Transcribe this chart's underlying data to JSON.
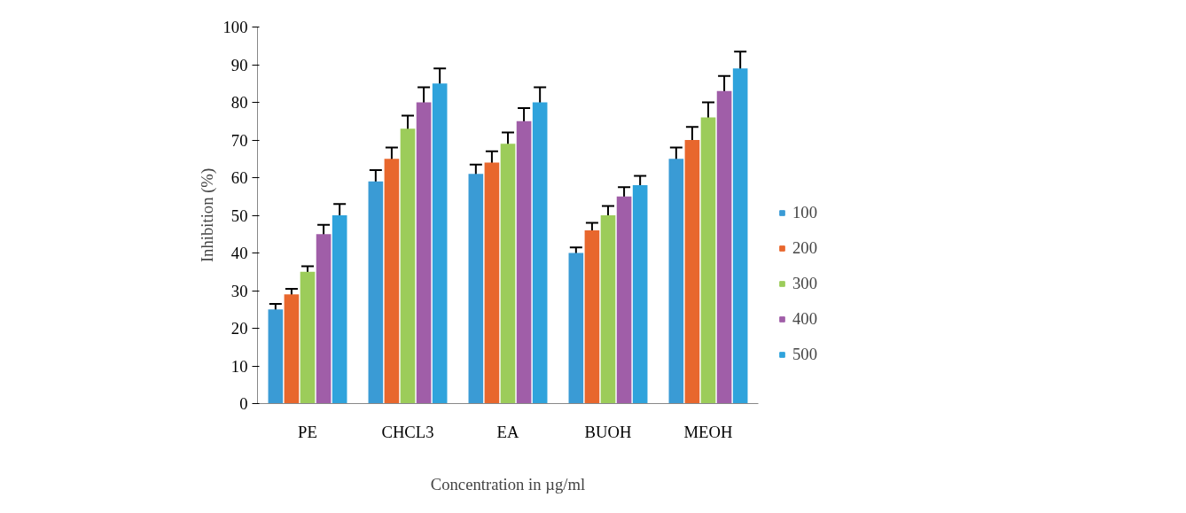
{
  "chart_data": {
    "type": "bar",
    "xlabel": "Concentration in µg/ml",
    "ylabel": "Inhibition (%)",
    "categories": [
      "PE",
      "CHCL3",
      "EA",
      "BUOH",
      "MEOH"
    ],
    "series": [
      {
        "name": "100",
        "color": "#3a9bd5",
        "values": [
          25,
          59,
          61,
          40,
          65
        ],
        "errors": [
          1.5,
          3,
          2.5,
          1.5,
          3
        ]
      },
      {
        "name": "200",
        "color": "#e8672d",
        "values": [
          29,
          65,
          64,
          46,
          70
        ],
        "errors": [
          1.5,
          3,
          3,
          2,
          3.5
        ]
      },
      {
        "name": "300",
        "color": "#9ccc5a",
        "values": [
          35,
          73,
          69,
          50,
          76
        ],
        "errors": [
          1.5,
          3.5,
          3,
          2.5,
          4
        ]
      },
      {
        "name": "400",
        "color": "#a05ea8",
        "values": [
          45,
          80,
          75,
          55,
          83
        ],
        "errors": [
          2.5,
          4,
          3.5,
          2.5,
          4
        ]
      },
      {
        "name": "500",
        "color": "#2fa3dc",
        "values": [
          50,
          85,
          80,
          58,
          89
        ],
        "errors": [
          3,
          4,
          4,
          2.5,
          4.5
        ]
      }
    ],
    "ylim": [
      0,
      100
    ],
    "yticks": [
      0,
      10,
      20,
      30,
      40,
      50,
      60,
      70,
      80,
      90,
      100
    ],
    "grid": false,
    "legend": "right"
  }
}
